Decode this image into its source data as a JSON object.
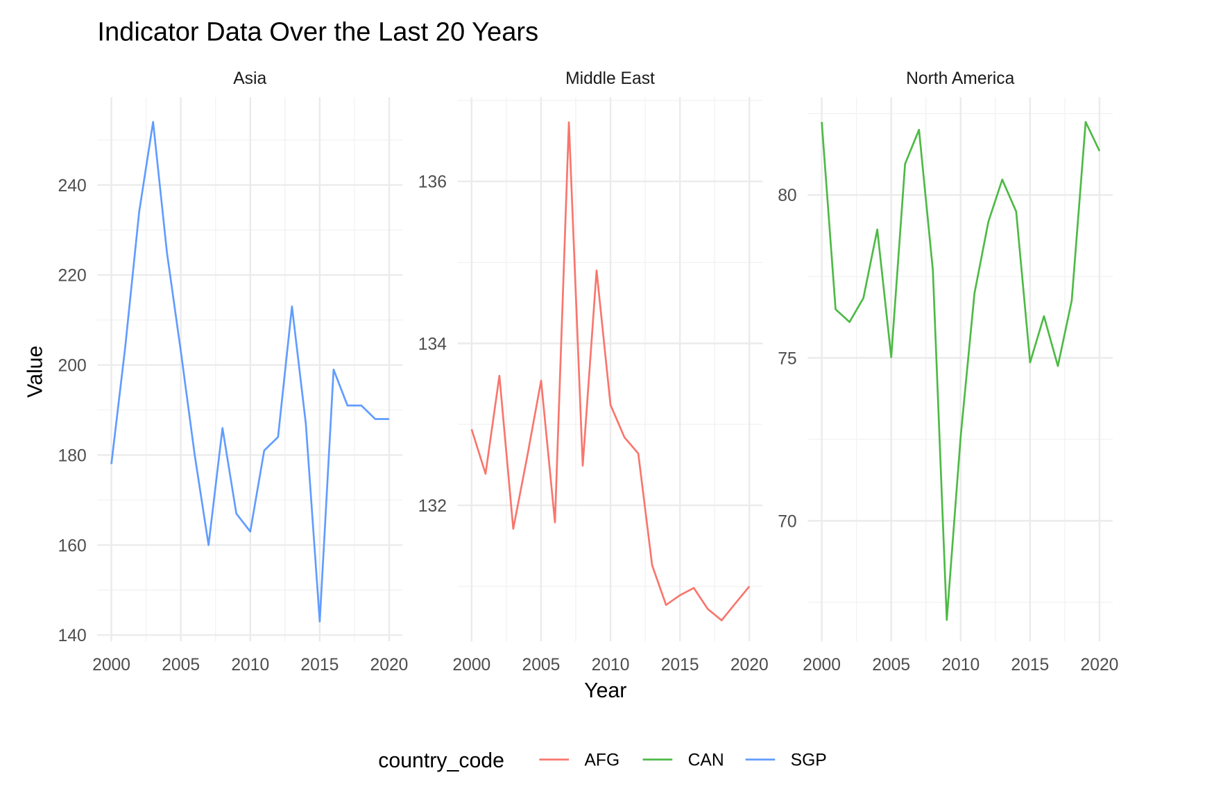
{
  "chart_data": {
    "type": "line",
    "title": "Indicator Data Over the Last 20 Years",
    "xlabel": "Year",
    "ylabel": "Value",
    "grid": true,
    "legend": {
      "title": "country_code",
      "placement": "bottom",
      "entries": [
        {
          "label": "AFG",
          "color": "#F8766D"
        },
        {
          "label": "CAN",
          "color": "#4DBA45"
        },
        {
          "label": "SGP",
          "color": "#619CFF"
        }
      ]
    },
    "x": [
      2000,
      2001,
      2002,
      2003,
      2004,
      2005,
      2006,
      2007,
      2008,
      2009,
      2010,
      2011,
      2012,
      2013,
      2014,
      2015,
      2016,
      2017,
      2018,
      2019,
      2020
    ],
    "x_ticks": [
      "2000",
      "2005",
      "2010",
      "2015",
      "2020"
    ],
    "xlim": [
      1999,
      2021
    ],
    "panels": [
      {
        "facet": "Asia",
        "series": "SGP",
        "color": "#619CFF",
        "ylim": [
          138.6,
          259.5
        ],
        "y_ticks": [
          "140",
          "160",
          "180",
          "200",
          "220",
          "240"
        ],
        "values": [
          178,
          204,
          234,
          254,
          225,
          203,
          180,
          160,
          186,
          167,
          163,
          181,
          184,
          213,
          187,
          143,
          199,
          191,
          191,
          188,
          188
        ]
      },
      {
        "facet": "Middle East",
        "series": "AFG",
        "color": "#F8766D",
        "ylim": [
          130.32,
          137.04
        ],
        "y_ticks": [
          "132",
          "134",
          "136"
        ],
        "values": [
          132.94,
          132.39,
          133.6,
          131.71,
          132.6,
          133.54,
          131.79,
          136.73,
          132.49,
          134.9,
          133.24,
          132.84,
          132.64,
          131.26,
          130.77,
          130.89,
          130.98,
          130.72,
          130.58,
          130.79,
          131.0
        ]
      },
      {
        "facet": "North America",
        "series": "CAN",
        "color": "#4DBA45",
        "ylim": [
          66.3,
          83.0
        ],
        "y_ticks": [
          "70",
          "75",
          "80"
        ],
        "values": [
          82.24,
          76.49,
          76.1,
          76.83,
          78.94,
          75.02,
          80.95,
          82.0,
          77.7,
          66.96,
          72.57,
          76.98,
          79.18,
          80.47,
          79.49,
          74.86,
          76.28,
          74.75,
          76.76,
          82.24,
          81.35
        ]
      }
    ]
  }
}
